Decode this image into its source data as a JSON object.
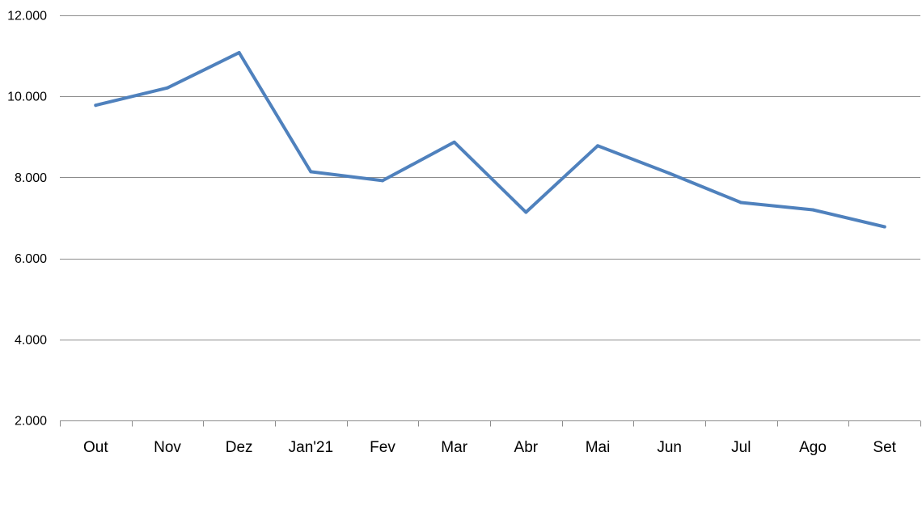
{
  "chart_data": {
    "type": "line",
    "title": "",
    "xlabel": "",
    "ylabel": "",
    "categories": [
      "Out",
      "Nov",
      "Dez",
      "Jan'21",
      "Fev",
      "Mar",
      "Abr",
      "Mai",
      "Jun",
      "Jul",
      "Ago",
      "Set"
    ],
    "series": [
      {
        "values": [
          9780,
          10210,
          11080,
          8140,
          7920,
          8870,
          7140,
          8780,
          8100,
          7380,
          7200,
          6780
        ],
        "color": "#4F81BD"
      }
    ],
    "ylim": [
      2000,
      12000
    ],
    "yticks": [
      2000,
      4000,
      6000,
      8000,
      10000,
      12000
    ],
    "ytick_labels": [
      "2.000",
      "4.000",
      "6.000",
      "8.000",
      "10.000",
      "12.000"
    ],
    "grid": "horizontal",
    "legend": "none",
    "gridline_color": "#8c8c8c"
  }
}
